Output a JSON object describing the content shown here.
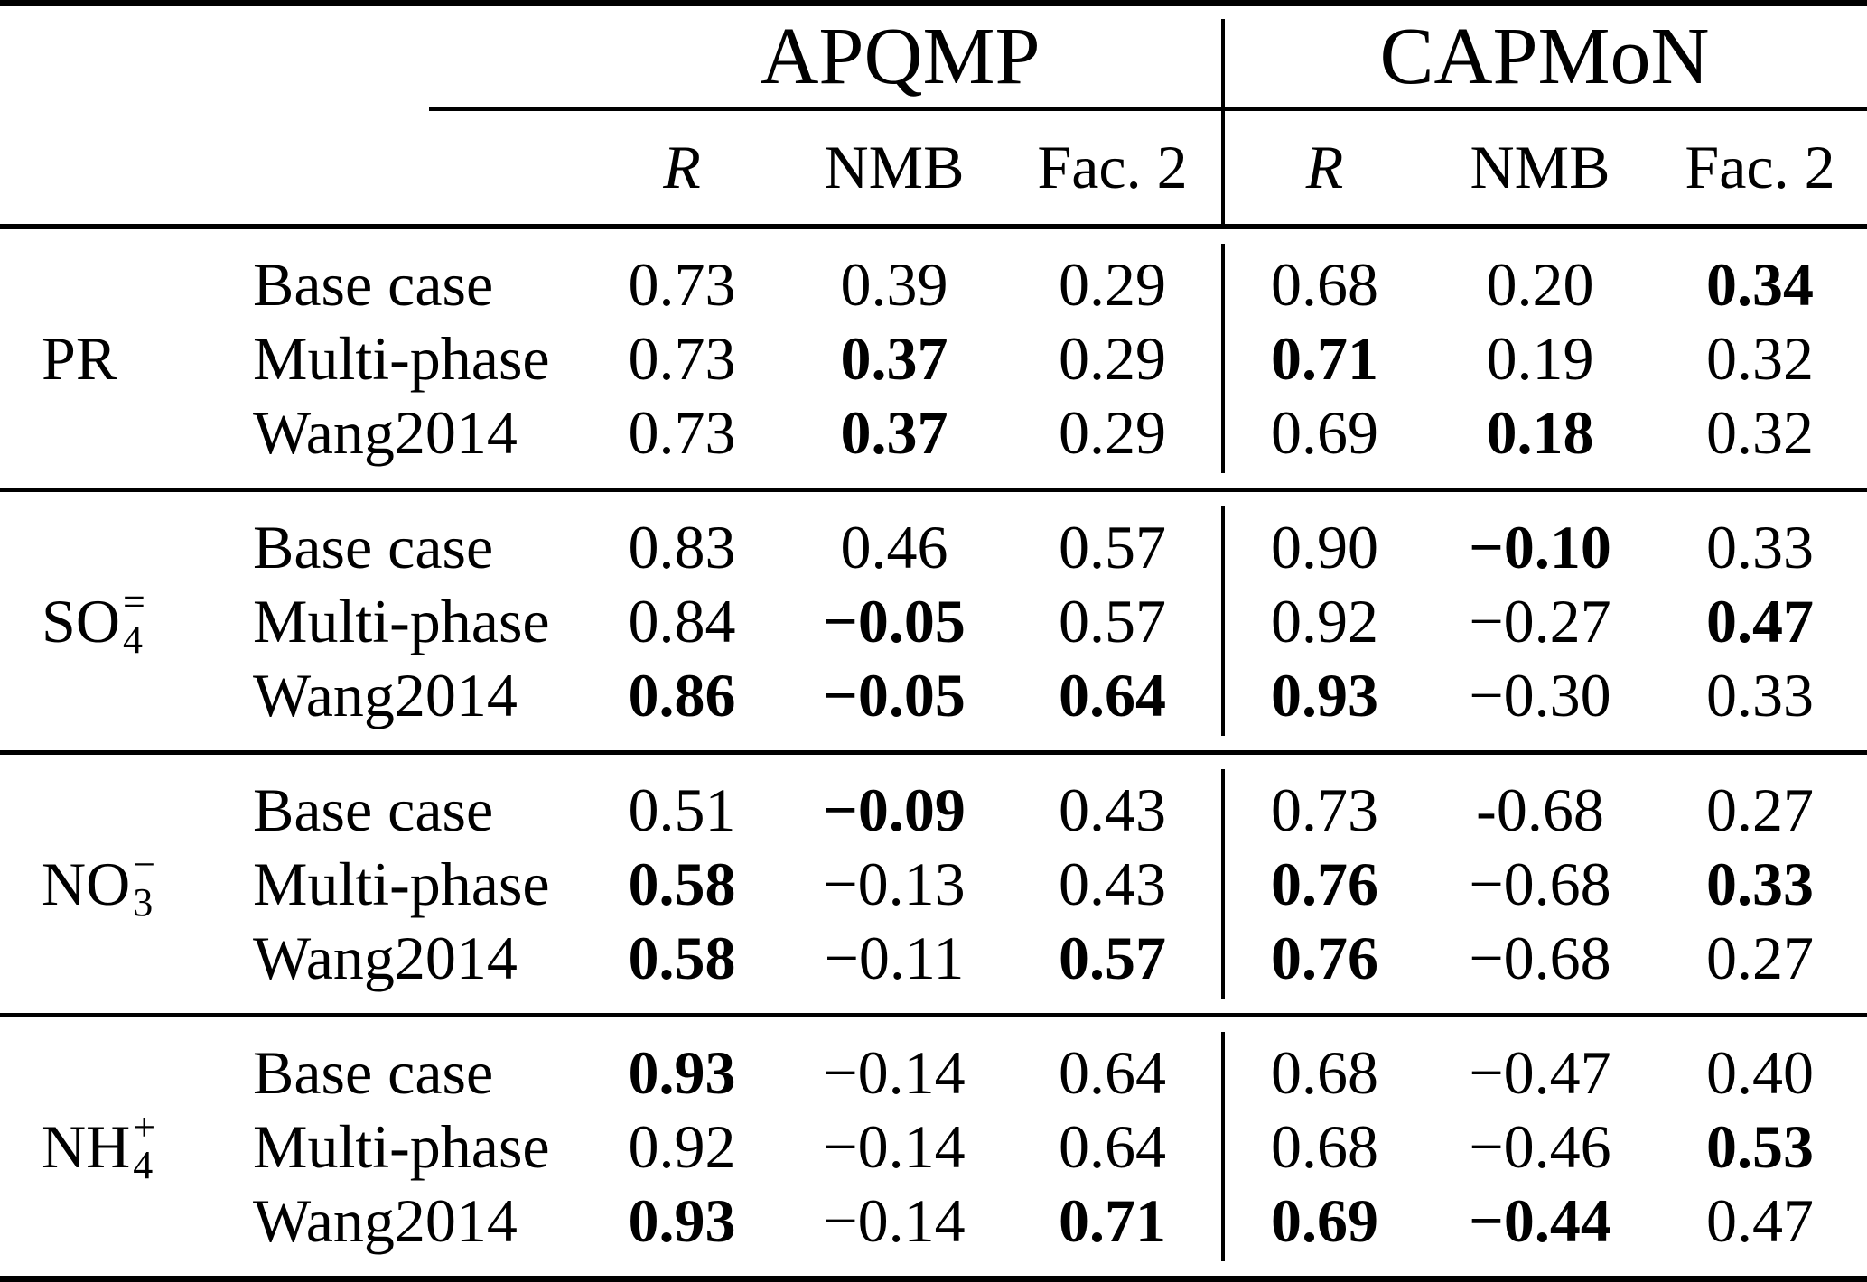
{
  "page": {
    "background": "#ffffff",
    "text_color": "#000000"
  },
  "header": {
    "groups": [
      {
        "label": "APQMP"
      },
      {
        "label": "CAPMoN"
      }
    ],
    "metrics": [
      "R",
      "NMB",
      "Fac. 2"
    ]
  },
  "groups": [
    {
      "species": {
        "main": "PR",
        "sup": "",
        "sub": ""
      },
      "rows": [
        {
          "case": "Base case",
          "values": [
            {
              "t": "0.73",
              "w": "n"
            },
            {
              "t": "0.39",
              "w": "n"
            },
            {
              "t": "0.29",
              "w": "n"
            },
            {
              "t": "0.68",
              "w": "n"
            },
            {
              "t": "0.20",
              "w": "n"
            },
            {
              "t": "0.34",
              "w": "b"
            }
          ]
        },
        {
          "case": "Multi-phase",
          "values": [
            {
              "t": "0.73",
              "w": "n"
            },
            {
              "t": "0.37",
              "w": "b"
            },
            {
              "t": "0.29",
              "w": "n"
            },
            {
              "t": "0.71",
              "w": "b"
            },
            {
              "t": "0.19",
              "w": "n"
            },
            {
              "t": "0.32",
              "w": "n"
            }
          ]
        },
        {
          "case": "Wang2014",
          "values": [
            {
              "t": "0.73",
              "w": "n"
            },
            {
              "t": "0.37",
              "w": "b"
            },
            {
              "t": "0.29",
              "w": "n"
            },
            {
              "t": "0.69",
              "w": "n"
            },
            {
              "t": "0.18",
              "w": "b"
            },
            {
              "t": "0.32",
              "w": "n"
            }
          ]
        }
      ]
    },
    {
      "species": {
        "main": "SO",
        "sup": "=",
        "sub": "4"
      },
      "rows": [
        {
          "case": "Base case",
          "values": [
            {
              "t": "0.83",
              "w": "n"
            },
            {
              "t": "0.46",
              "w": "n"
            },
            {
              "t": "0.57",
              "w": "n"
            },
            {
              "t": "0.90",
              "w": "n"
            },
            {
              "t": "−0.10",
              "w": "b"
            },
            {
              "t": "0.33",
              "w": "n"
            }
          ]
        },
        {
          "case": "Multi-phase",
          "values": [
            {
              "t": "0.84",
              "w": "n"
            },
            {
              "t": "−0.05",
              "w": "b"
            },
            {
              "t": "0.57",
              "w": "n"
            },
            {
              "t": "0.92",
              "w": "n"
            },
            {
              "t": "−0.27",
              "w": "n"
            },
            {
              "t": "0.47",
              "w": "b"
            }
          ]
        },
        {
          "case": "Wang2014",
          "values": [
            {
              "t": "0.86",
              "w": "b"
            },
            {
              "t": "−0.05",
              "w": "b"
            },
            {
              "t": "0.64",
              "w": "b"
            },
            {
              "t": "0.93",
              "w": "b"
            },
            {
              "t": "−0.30",
              "w": "n"
            },
            {
              "t": "0.33",
              "w": "n"
            }
          ]
        }
      ]
    },
    {
      "species": {
        "main": "NO",
        "sup": "−",
        "sub": "3"
      },
      "rows": [
        {
          "case": "Base case",
          "values": [
            {
              "t": "0.51",
              "w": "n"
            },
            {
              "t": "−0.09",
              "w": "b"
            },
            {
              "t": "0.43",
              "w": "n"
            },
            {
              "t": "0.73",
              "w": "n"
            },
            {
              "t": "-0.68",
              "w": "n"
            },
            {
              "t": "0.27",
              "w": "n"
            }
          ]
        },
        {
          "case": "Multi-phase",
          "values": [
            {
              "t": "0.58",
              "w": "b"
            },
            {
              "t": "−0.13",
              "w": "n"
            },
            {
              "t": "0.43",
              "w": "n"
            },
            {
              "t": "0.76",
              "w": "b"
            },
            {
              "t": "−0.68",
              "w": "n"
            },
            {
              "t": "0.33",
              "w": "b"
            }
          ]
        },
        {
          "case": "Wang2014",
          "values": [
            {
              "t": "0.58",
              "w": "b"
            },
            {
              "t": "−0.11",
              "w": "n"
            },
            {
              "t": "0.57",
              "w": "b"
            },
            {
              "t": "0.76",
              "w": "b"
            },
            {
              "t": "−0.68",
              "w": "n"
            },
            {
              "t": "0.27",
              "w": "n"
            }
          ]
        }
      ]
    },
    {
      "species": {
        "main": "NH",
        "sup": "+",
        "sub": "4"
      },
      "rows": [
        {
          "case": "Base case",
          "values": [
            {
              "t": "0.93",
              "w": "b"
            },
            {
              "t": "−0.14",
              "w": "n"
            },
            {
              "t": "0.64",
              "w": "n"
            },
            {
              "t": "0.68",
              "w": "n"
            },
            {
              "t": "−0.47",
              "w": "n"
            },
            {
              "t": "0.40",
              "w": "n"
            }
          ]
        },
        {
          "case": "Multi-phase",
          "values": [
            {
              "t": "0.92",
              "w": "n"
            },
            {
              "t": "−0.14",
              "w": "n"
            },
            {
              "t": "0.64",
              "w": "n"
            },
            {
              "t": "0.68",
              "w": "n"
            },
            {
              "t": "−0.46",
              "w": "n"
            },
            {
              "t": "0.53",
              "w": "b"
            }
          ]
        },
        {
          "case": "Wang2014",
          "values": [
            {
              "t": "0.93",
              "w": "b"
            },
            {
              "t": "−0.14",
              "w": "n"
            },
            {
              "t": "0.71",
              "w": "b"
            },
            {
              "t": "0.69",
              "w": "b"
            },
            {
              "t": "−0.44",
              "w": "b"
            },
            {
              "t": "0.47",
              "w": "n"
            }
          ]
        }
      ]
    }
  ]
}
